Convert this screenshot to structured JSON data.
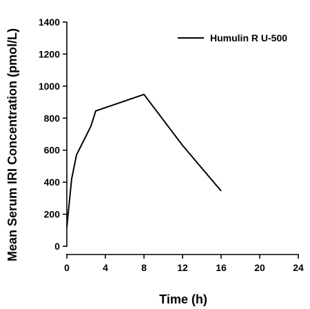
{
  "chart_data": {
    "type": "line",
    "xlabel": "Time (h)",
    "ylabel": "Mean Serum IRI Concentration (pmol/L)",
    "xlim": [
      0,
      24
    ],
    "ylim": [
      0,
      1400
    ],
    "x_ticks": [
      "0",
      "4",
      "8",
      "12",
      "16",
      "20",
      "24"
    ],
    "y_ticks": [
      "0",
      "200",
      "400",
      "600",
      "800",
      "1000",
      "1200",
      "1400"
    ],
    "grid": false,
    "legend_position": "top-right",
    "series": [
      {
        "name": "Humulin R U-500",
        "color": "#000000",
        "points": [
          {
            "x": 0,
            "y": 120
          },
          {
            "x": 0.5,
            "y": 420
          },
          {
            "x": 1,
            "y": 570
          },
          {
            "x": 1.5,
            "y": 630
          },
          {
            "x": 2,
            "y": 690
          },
          {
            "x": 2.5,
            "y": 750
          },
          {
            "x": 3,
            "y": 845
          },
          {
            "x": 8,
            "y": 948
          },
          {
            "x": 12,
            "y": 630
          },
          {
            "x": 16,
            "y": 345
          }
        ]
      }
    ]
  }
}
